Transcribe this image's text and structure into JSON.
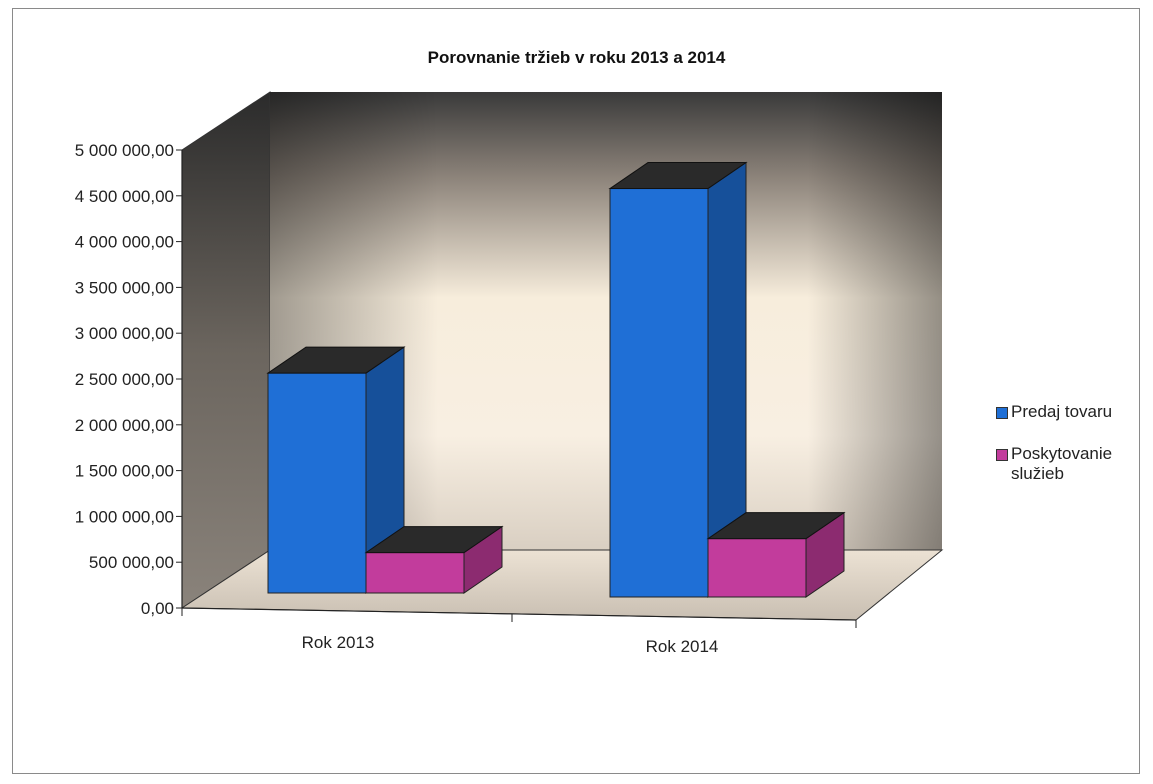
{
  "chart_data": {
    "type": "bar",
    "title": "Porovnanie  tržieb v roku 2013 a 2014",
    "categories": [
      "Rok 2013",
      "Rok 2014"
    ],
    "series": [
      {
        "name": "Predaj tovaru",
        "values": [
          2450000,
          4550000
        ],
        "color": "#1f6fd6"
      },
      {
        "name": "Poskytovanie služieb",
        "values": [
          450000,
          650000
        ],
        "color": "#c23c9c"
      }
    ],
    "ylim": [
      0,
      5000000
    ],
    "yticks": [
      0,
      500000,
      1000000,
      1500000,
      2000000,
      2500000,
      3000000,
      3500000,
      4000000,
      4500000,
      5000000
    ],
    "ytick_labels": [
      "0,00",
      "500 000,00",
      "1 000 000,00",
      "1 500 000,00",
      "2 000 000,00",
      "2 500 000,00",
      "3 000 000,00",
      "3 500 000,00",
      "4 000 000,00",
      "4 500 000,00",
      "5 000 000,00"
    ],
    "legend_position": "right",
    "style": "3d-column"
  }
}
